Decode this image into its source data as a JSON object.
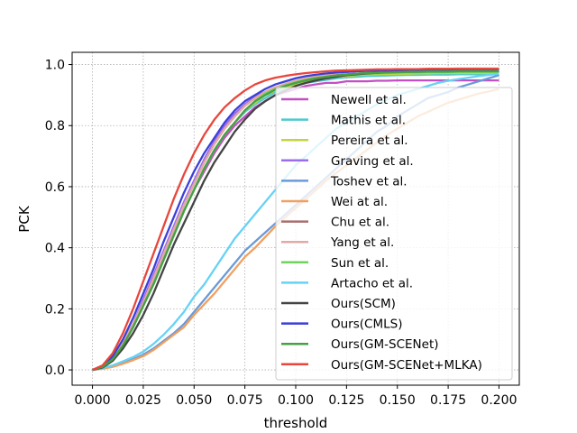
{
  "chart_data": {
    "type": "line",
    "xlabel": "threshold",
    "ylabel": "PCK",
    "xlim": [
      -0.01,
      0.21
    ],
    "ylim": [
      -0.05,
      1.04
    ],
    "xticks": [
      "0.000",
      "0.025",
      "0.050",
      "0.075",
      "0.100",
      "0.125",
      "0.150",
      "0.175",
      "0.200"
    ],
    "yticks": [
      "0.0",
      "0.2",
      "0.4",
      "0.6",
      "0.8",
      "1.0"
    ],
    "grid": true,
    "legend_position": "right",
    "x": [
      0,
      0.005,
      0.01,
      0.015,
      0.02,
      0.025,
      0.03,
      0.035,
      0.04,
      0.045,
      0.05,
      0.055,
      0.06,
      0.065,
      0.07,
      0.075,
      0.08,
      0.085,
      0.09,
      0.095,
      0.1,
      0.105,
      0.11,
      0.115,
      0.12,
      0.125,
      0.13,
      0.135,
      0.14,
      0.145,
      0.15,
      0.155,
      0.16,
      0.165,
      0.17,
      0.175,
      0.18,
      0.185,
      0.19,
      0.195,
      0.2
    ],
    "series": [
      {
        "name": "Newell et al.",
        "color": "#c44fc4",
        "values": [
          0,
          0.01,
          0.035,
          0.08,
          0.14,
          0.21,
          0.28,
          0.36,
          0.44,
          0.52,
          0.59,
          0.65,
          0.71,
          0.76,
          0.8,
          0.83,
          0.86,
          0.88,
          0.9,
          0.91,
          0.92,
          0.93,
          0.935,
          0.94,
          0.94,
          0.945,
          0.945,
          0.945,
          0.947,
          0.947,
          0.948,
          0.948,
          0.948,
          0.948,
          0.948,
          0.948,
          0.948,
          0.948,
          0.948,
          0.948,
          0.948
        ]
      },
      {
        "name": "Mathis et al.",
        "color": "#4cc9cf",
        "values": [
          0,
          0.01,
          0.035,
          0.08,
          0.14,
          0.21,
          0.28,
          0.36,
          0.44,
          0.52,
          0.59,
          0.66,
          0.72,
          0.77,
          0.81,
          0.845,
          0.87,
          0.89,
          0.91,
          0.92,
          0.93,
          0.94,
          0.945,
          0.95,
          0.955,
          0.958,
          0.96,
          0.962,
          0.963,
          0.964,
          0.965,
          0.966,
          0.966,
          0.967,
          0.967,
          0.967,
          0.968,
          0.968,
          0.968,
          0.968,
          0.968
        ]
      },
      {
        "name": "Pereira et al.",
        "color": "#c5d43d",
        "values": [
          0,
          0.01,
          0.035,
          0.08,
          0.14,
          0.21,
          0.28,
          0.36,
          0.44,
          0.52,
          0.59,
          0.66,
          0.72,
          0.77,
          0.81,
          0.85,
          0.875,
          0.9,
          0.915,
          0.925,
          0.935,
          0.945,
          0.95,
          0.955,
          0.96,
          0.962,
          0.965,
          0.967,
          0.968,
          0.969,
          0.97,
          0.97,
          0.971,
          0.971,
          0.972,
          0.972,
          0.972,
          0.972,
          0.972,
          0.972,
          0.972
        ]
      },
      {
        "name": "Graving et al.",
        "color": "#9b6cf0",
        "values": [
          0,
          0.012,
          0.04,
          0.09,
          0.15,
          0.23,
          0.31,
          0.39,
          0.47,
          0.55,
          0.62,
          0.69,
          0.75,
          0.8,
          0.84,
          0.87,
          0.895,
          0.91,
          0.925,
          0.935,
          0.945,
          0.952,
          0.958,
          0.962,
          0.965,
          0.968,
          0.97,
          0.972,
          0.973,
          0.974,
          0.975,
          0.976,
          0.976,
          0.977,
          0.977,
          0.977,
          0.978,
          0.978,
          0.978,
          0.978,
          0.978
        ]
      },
      {
        "name": "Toshev et al.",
        "color": "#6b9ad8",
        "values": [
          0,
          0.005,
          0.012,
          0.022,
          0.035,
          0.05,
          0.07,
          0.095,
          0.12,
          0.15,
          0.19,
          0.23,
          0.27,
          0.31,
          0.35,
          0.39,
          0.42,
          0.45,
          0.48,
          0.51,
          0.54,
          0.57,
          0.6,
          0.63,
          0.66,
          0.69,
          0.72,
          0.75,
          0.78,
          0.8,
          0.83,
          0.85,
          0.87,
          0.89,
          0.9,
          0.91,
          0.925,
          0.935,
          0.945,
          0.955,
          0.965
        ]
      },
      {
        "name": "Wei at al.",
        "color": "#f0a060",
        "values": [
          0,
          0.004,
          0.01,
          0.02,
          0.032,
          0.045,
          0.065,
          0.09,
          0.115,
          0.14,
          0.18,
          0.215,
          0.25,
          0.29,
          0.33,
          0.37,
          0.4,
          0.435,
          0.47,
          0.5,
          0.53,
          0.56,
          0.59,
          0.62,
          0.645,
          0.67,
          0.695,
          0.72,
          0.745,
          0.77,
          0.79,
          0.81,
          0.83,
          0.845,
          0.86,
          0.875,
          0.885,
          0.895,
          0.905,
          0.912,
          0.92
        ]
      },
      {
        "name": "Chu et al.",
        "color": "#a8706f",
        "values": [
          0,
          0.012,
          0.04,
          0.09,
          0.15,
          0.22,
          0.3,
          0.38,
          0.46,
          0.54,
          0.61,
          0.68,
          0.74,
          0.79,
          0.83,
          0.865,
          0.89,
          0.91,
          0.925,
          0.935,
          0.945,
          0.952,
          0.958,
          0.962,
          0.965,
          0.968,
          0.97,
          0.972,
          0.973,
          0.974,
          0.975,
          0.976,
          0.976,
          0.977,
          0.977,
          0.977,
          0.978,
          0.978,
          0.978,
          0.978,
          0.978
        ]
      },
      {
        "name": "Yang et al.",
        "color": "#e3a8a6",
        "values": [
          0,
          0.012,
          0.04,
          0.09,
          0.15,
          0.22,
          0.3,
          0.38,
          0.46,
          0.54,
          0.61,
          0.68,
          0.74,
          0.79,
          0.83,
          0.865,
          0.89,
          0.91,
          0.925,
          0.937,
          0.947,
          0.955,
          0.962,
          0.967,
          0.972,
          0.975,
          0.978,
          0.98,
          0.982,
          0.983,
          0.984,
          0.985,
          0.985,
          0.986,
          0.986,
          0.986,
          0.987,
          0.987,
          0.987,
          0.987,
          0.987
        ]
      },
      {
        "name": "Sun et al.",
        "color": "#6fd45a",
        "values": [
          0,
          0.01,
          0.035,
          0.08,
          0.14,
          0.21,
          0.28,
          0.36,
          0.44,
          0.52,
          0.59,
          0.66,
          0.72,
          0.77,
          0.81,
          0.85,
          0.88,
          0.905,
          0.92,
          0.932,
          0.942,
          0.95,
          0.956,
          0.96,
          0.963,
          0.966,
          0.968,
          0.97,
          0.971,
          0.972,
          0.973,
          0.974,
          0.974,
          0.975,
          0.975,
          0.975,
          0.976,
          0.976,
          0.976,
          0.976,
          0.976
        ]
      },
      {
        "name": "Artacho et al.",
        "color": "#66d2f5",
        "values": [
          0,
          0.006,
          0.015,
          0.028,
          0.042,
          0.06,
          0.085,
          0.115,
          0.15,
          0.19,
          0.24,
          0.28,
          0.33,
          0.38,
          0.43,
          0.47,
          0.51,
          0.55,
          0.59,
          0.63,
          0.67,
          0.7,
          0.73,
          0.76,
          0.79,
          0.81,
          0.83,
          0.85,
          0.87,
          0.885,
          0.9,
          0.91,
          0.92,
          0.93,
          0.94,
          0.947,
          0.952,
          0.957,
          0.962,
          0.966,
          0.97
        ]
      },
      {
        "name": "Ours(SCM)",
        "color": "#444444",
        "values": [
          0,
          0.008,
          0.03,
          0.07,
          0.12,
          0.18,
          0.25,
          0.33,
          0.41,
          0.48,
          0.55,
          0.62,
          0.68,
          0.73,
          0.78,
          0.82,
          0.855,
          0.88,
          0.9,
          0.915,
          0.93,
          0.94,
          0.948,
          0.955,
          0.96,
          0.965,
          0.968,
          0.971,
          0.973,
          0.975,
          0.976,
          0.977,
          0.978,
          0.978,
          0.979,
          0.979,
          0.979,
          0.98,
          0.98,
          0.98,
          0.98
        ]
      },
      {
        "name": "Ours(CMLS)",
        "color": "#3b3fd9",
        "values": [
          0,
          0.012,
          0.045,
          0.1,
          0.17,
          0.25,
          0.33,
          0.42,
          0.5,
          0.58,
          0.65,
          0.71,
          0.76,
          0.81,
          0.85,
          0.88,
          0.9,
          0.92,
          0.935,
          0.945,
          0.955,
          0.962,
          0.967,
          0.971,
          0.974,
          0.976,
          0.978,
          0.979,
          0.98,
          0.981,
          0.982,
          0.982,
          0.983,
          0.983,
          0.983,
          0.984,
          0.984,
          0.984,
          0.984,
          0.984,
          0.984
        ]
      },
      {
        "name": "Ours(GM-SCENet)",
        "color": "#46a046",
        "values": [
          0,
          0.01,
          0.035,
          0.08,
          0.14,
          0.21,
          0.28,
          0.36,
          0.44,
          0.52,
          0.59,
          0.66,
          0.72,
          0.77,
          0.81,
          0.85,
          0.88,
          0.9,
          0.918,
          0.93,
          0.94,
          0.948,
          0.955,
          0.96,
          0.964,
          0.967,
          0.97,
          0.972,
          0.973,
          0.974,
          0.975,
          0.976,
          0.976,
          0.977,
          0.977,
          0.977,
          0.978,
          0.978,
          0.978,
          0.978,
          0.978
        ]
      },
      {
        "name": "Ours(GM-SCENet+MLKA)",
        "color": "#e8463c",
        "values": [
          0,
          0.015,
          0.055,
          0.12,
          0.2,
          0.29,
          0.38,
          0.47,
          0.56,
          0.64,
          0.71,
          0.77,
          0.82,
          0.86,
          0.89,
          0.915,
          0.935,
          0.948,
          0.957,
          0.963,
          0.968,
          0.972,
          0.975,
          0.978,
          0.98,
          0.981,
          0.982,
          0.983,
          0.984,
          0.984,
          0.985,
          0.985,
          0.985,
          0.986,
          0.986,
          0.986,
          0.986,
          0.986,
          0.986,
          0.986,
          0.986
        ]
      }
    ]
  }
}
